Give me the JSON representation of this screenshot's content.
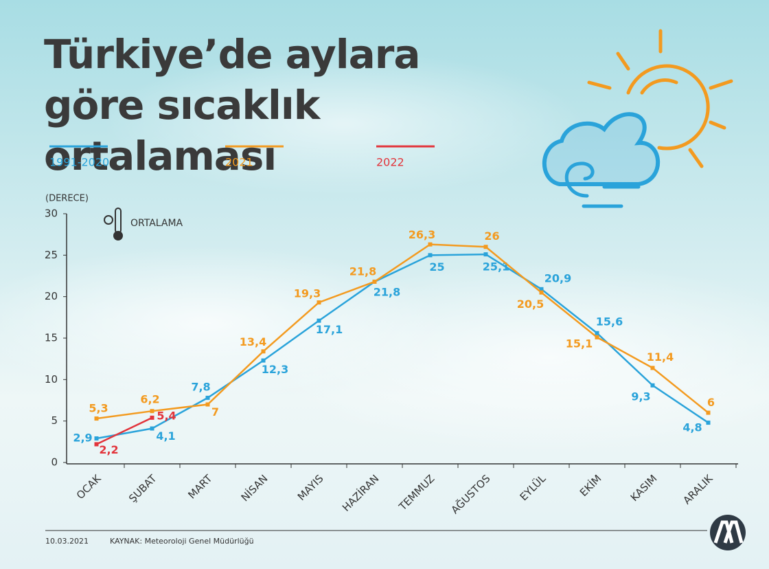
{
  "chart_data": {
    "type": "line",
    "title": "Türkiye’de aylara göre sıcaklık ortalaması",
    "y_label": "(DERECE)",
    "annotation": "ORTALAMA",
    "date": "10.03.2021",
    "source": "KAYNAK: Meteoroloji Genel Müdürlüğü",
    "categories": [
      "OCAK",
      "ŞUBAT",
      "MART",
      "NİSAN",
      "MAYIS",
      "HAZİRAN",
      "TEMMUZ",
      "AĞUSTOS",
      "EYLÜL",
      "EKİM",
      "KASIM",
      "ARALIK"
    ],
    "series": [
      {
        "name": "1991-2020",
        "color": "#2aa3da",
        "values": [
          2.9,
          4.1,
          7.8,
          12.3,
          17.1,
          21.8,
          25,
          25.1,
          20.9,
          15.6,
          9.3,
          4.8
        ],
        "value_labels": [
          "2,9",
          "4,1",
          "7,8",
          "12,3",
          "17,1",
          "21,8",
          "25",
          "25,1",
          "20,9",
          "15,6",
          "9,3",
          "4,8"
        ]
      },
      {
        "name": "2021",
        "color": "#f39a1f",
        "values": [
          5.3,
          6.2,
          7,
          13.4,
          19.3,
          21.8,
          26.3,
          26,
          20.5,
          15.1,
          11.4,
          6
        ],
        "value_labels": [
          "5,3",
          "6,2",
          "7",
          "13,4",
          "19,3",
          "21,8",
          "26,3",
          "26",
          "20,5",
          "15,1",
          "11,4",
          "6"
        ]
      },
      {
        "name": "2022",
        "color": "#e2343b",
        "values": [
          2.2,
          5.4,
          null,
          null,
          null,
          null,
          null,
          null,
          null,
          null,
          null,
          null
        ],
        "value_labels": [
          "2,2",
          "5,4",
          null,
          null,
          null,
          null,
          null,
          null,
          null,
          null,
          null,
          null
        ]
      }
    ],
    "ylim": [
      0,
      30
    ],
    "yticks": [
      0,
      5,
      10,
      15,
      20,
      25,
      30
    ],
    "grid": false
  }
}
